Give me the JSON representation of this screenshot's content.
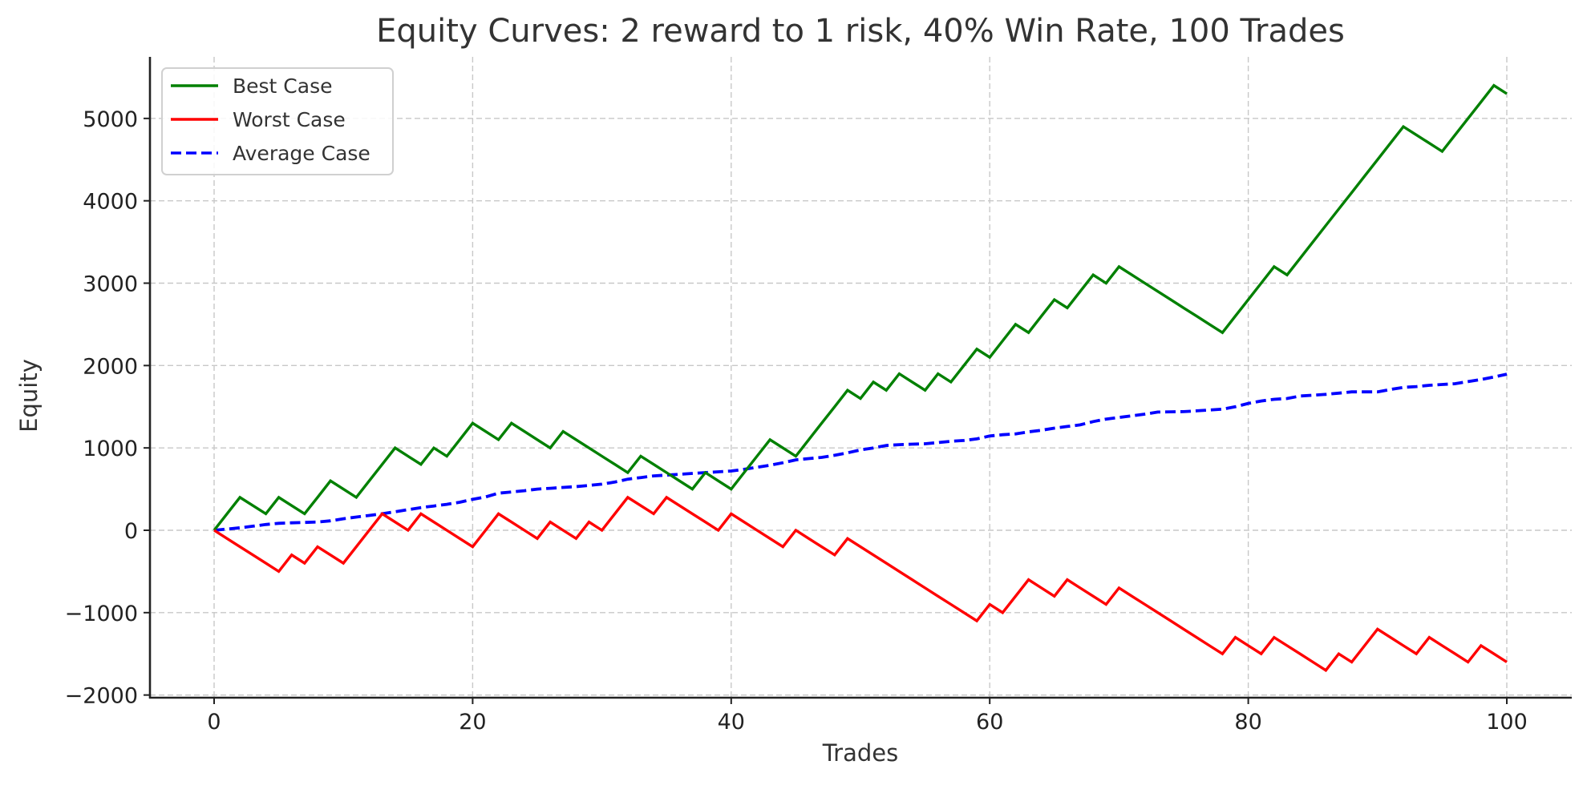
{
  "chart_data": {
    "type": "line",
    "title": "Equity Curves: 2 reward to 1 risk, 40% Win Rate, 100 Trades",
    "xlabel": "Trades",
    "ylabel": "Equity",
    "xlim": [
      -5,
      105
    ],
    "ylim": [
      -2050,
      5750
    ],
    "xticks": [
      0,
      20,
      40,
      60,
      80,
      100
    ],
    "xtick_labels": [
      "0",
      "20",
      "40",
      "60",
      "80",
      "100"
    ],
    "yticks": [
      -2000,
      -1000,
      0,
      1000,
      2000,
      3000,
      4000,
      5000
    ],
    "ytick_labels": [
      "−2000",
      "−1000",
      "0",
      "1000",
      "2000",
      "3000",
      "4000",
      "5000"
    ],
    "grid": true,
    "legend_position": "upper left",
    "x": [
      0,
      1,
      2,
      3,
      4,
      5,
      6,
      7,
      8,
      9,
      10,
      11,
      12,
      13,
      14,
      15,
      16,
      17,
      18,
      19,
      20,
      21,
      22,
      23,
      24,
      25,
      26,
      27,
      28,
      29,
      30,
      31,
      32,
      33,
      34,
      35,
      36,
      37,
      38,
      39,
      40,
      41,
      42,
      43,
      44,
      45,
      46,
      47,
      48,
      49,
      50,
      51,
      52,
      53,
      54,
      55,
      56,
      57,
      58,
      59,
      60,
      61,
      62,
      63,
      64,
      65,
      66,
      67,
      68,
      69,
      70,
      71,
      72,
      73,
      74,
      75,
      76,
      77,
      78,
      79,
      80,
      81,
      82,
      83,
      84,
      85,
      86,
      87,
      88,
      89,
      90,
      91,
      92,
      93,
      94,
      95,
      96,
      97,
      98,
      99,
      100
    ],
    "series": [
      {
        "name": "Best Case",
        "color": "#008000",
        "style": "solid",
        "values": [
          0,
          200,
          400,
          300,
          200,
          400,
          300,
          200,
          400,
          600,
          500,
          400,
          600,
          800,
          1000,
          900,
          800,
          1000,
          900,
          1100,
          1300,
          1200,
          1100,
          1300,
          1200,
          1100,
          1000,
          1200,
          1100,
          1000,
          900,
          800,
          700,
          900,
          800,
          700,
          600,
          500,
          700,
          600,
          500,
          700,
          900,
          1100,
          1000,
          900,
          1100,
          1300,
          1500,
          1700,
          1600,
          1800,
          1700,
          1900,
          1800,
          1700,
          1900,
          1800,
          2000,
          2200,
          2100,
          2300,
          2500,
          2400,
          2600,
          2800,
          2700,
          2900,
          3100,
          3000,
          3200,
          3100,
          3000,
          2900,
          2800,
          2700,
          2600,
          2500,
          2400,
          2600,
          2800,
          3000,
          3200,
          3100,
          3300,
          3500,
          3700,
          3900,
          4100,
          4300,
          4500,
          4700,
          4900,
          4800,
          4700,
          4600,
          4800,
          5000,
          5200,
          5400,
          5300
        ]
      },
      {
        "name": "Worst Case",
        "color": "#ff0000",
        "style": "solid",
        "values": [
          0,
          -100,
          -200,
          -300,
          -400,
          -500,
          -300,
          -400,
          -200,
          -300,
          -400,
          -200,
          0,
          200,
          100,
          0,
          200,
          100,
          0,
          -100,
          -200,
          0,
          200,
          100,
          0,
          -100,
          100,
          0,
          -100,
          100,
          0,
          200,
          400,
          300,
          200,
          400,
          300,
          200,
          100,
          0,
          200,
          100,
          0,
          -100,
          -200,
          0,
          -100,
          -200,
          -300,
          -100,
          -200,
          -300,
          -400,
          -500,
          -600,
          -700,
          -800,
          -900,
          -1000,
          -1100,
          -900,
          -1000,
          -800,
          -600,
          -700,
          -800,
          -600,
          -700,
          -800,
          -900,
          -700,
          -800,
          -900,
          -1000,
          -1100,
          -1200,
          -1300,
          -1400,
          -1500,
          -1300,
          -1400,
          -1500,
          -1300,
          -1400,
          -1500,
          -1600,
          -1700,
          -1500,
          -1600,
          -1400,
          -1200,
          -1300,
          -1400,
          -1500,
          -1300,
          -1400,
          -1500,
          -1600,
          -1400,
          -1500,
          -1600
        ]
      },
      {
        "name": "Average Case",
        "color": "#0000ff",
        "style": "dashed",
        "values": [
          0,
          15,
          30,
          50,
          70,
          85,
          90,
          95,
          100,
          115,
          140,
          160,
          180,
          200,
          225,
          250,
          275,
          295,
          315,
          340,
          375,
          405,
          450,
          465,
          480,
          500,
          510,
          520,
          530,
          545,
          560,
          585,
          620,
          640,
          660,
          670,
          680,
          690,
          700,
          710,
          720,
          740,
          765,
          790,
          820,
          855,
          870,
          885,
          910,
          940,
          975,
          1000,
          1030,
          1040,
          1045,
          1050,
          1065,
          1080,
          1090,
          1110,
          1145,
          1160,
          1170,
          1195,
          1215,
          1240,
          1260,
          1280,
          1320,
          1350,
          1370,
          1390,
          1410,
          1435,
          1438,
          1440,
          1450,
          1460,
          1470,
          1500,
          1540,
          1570,
          1590,
          1600,
          1630,
          1640,
          1650,
          1665,
          1680,
          1680,
          1680,
          1710,
          1735,
          1745,
          1760,
          1770,
          1780,
          1805,
          1830,
          1860,
          1895
        ]
      }
    ]
  }
}
